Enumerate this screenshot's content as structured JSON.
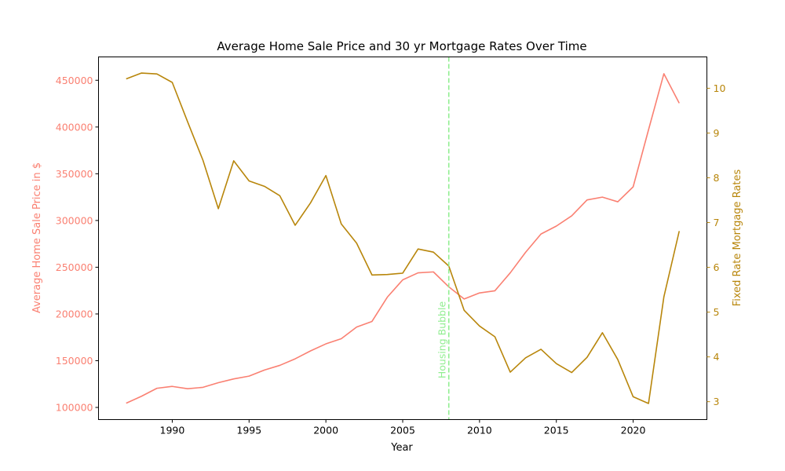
{
  "chart_data": {
    "type": "line",
    "title": "Average Home Sale Price and 30 yr Mortgage Rates Over Time",
    "xlabel": "Year",
    "ylabel_left": "Average Home Sale Price in $",
    "ylabel_right": "Fixed Rate Mortgage Rates",
    "xlim": [
      1985.2,
      2024.8
    ],
    "ylim_left": [
      87000,
      475000
    ],
    "ylim_right": [
      2.6,
      10.7
    ],
    "x_ticks": [
      1990,
      1995,
      2000,
      2005,
      2010,
      2015,
      2020
    ],
    "y_ticks_left": [
      100000,
      150000,
      200000,
      250000,
      300000,
      350000,
      400000,
      450000
    ],
    "y_ticks_right": [
      3,
      4,
      5,
      6,
      7,
      8,
      9,
      10
    ],
    "grid": false,
    "x": [
      1987,
      1988,
      1989,
      1990,
      1991,
      1992,
      1993,
      1994,
      1995,
      1996,
      1997,
      1998,
      1999,
      2000,
      2001,
      2002,
      2003,
      2004,
      2005,
      2006,
      2007,
      2008,
      2009,
      2010,
      2011,
      2012,
      2013,
      2014,
      2015,
      2016,
      2017,
      2018,
      2019,
      2020,
      2021,
      2022,
      2023
    ],
    "series": [
      {
        "axis": "left",
        "color": "#fa8072",
        "values": [
          104500,
          112000,
          120500,
          122500,
          120000,
          121500,
          126500,
          130500,
          133500,
          140000,
          145000,
          152000,
          160500,
          168000,
          173500,
          186000,
          192000,
          218000,
          236500,
          244000,
          245000,
          229000,
          216000,
          222500,
          224800,
          244000,
          266000,
          285500,
          294000,
          305000,
          322000,
          325000,
          320000,
          336000,
          397000,
          457000,
          425500
        ]
      },
      {
        "axis": "right",
        "color": "#b8860b",
        "values": [
          10.21,
          10.34,
          10.32,
          10.13,
          9.25,
          8.39,
          7.31,
          8.38,
          7.93,
          7.81,
          7.6,
          6.94,
          7.44,
          8.05,
          6.97,
          6.54,
          5.83,
          5.84,
          5.87,
          6.41,
          6.34,
          6.03,
          5.04,
          4.69,
          4.45,
          3.66,
          3.98,
          4.17,
          3.85,
          3.65,
          3.99,
          4.54,
          3.94,
          3.11,
          2.96,
          5.34,
          6.81
        ]
      }
    ],
    "annotations": [
      {
        "type": "vline",
        "x": 2008,
        "color": "#90ee90",
        "style": "dashed",
        "label": "Housing Bubble"
      }
    ]
  }
}
